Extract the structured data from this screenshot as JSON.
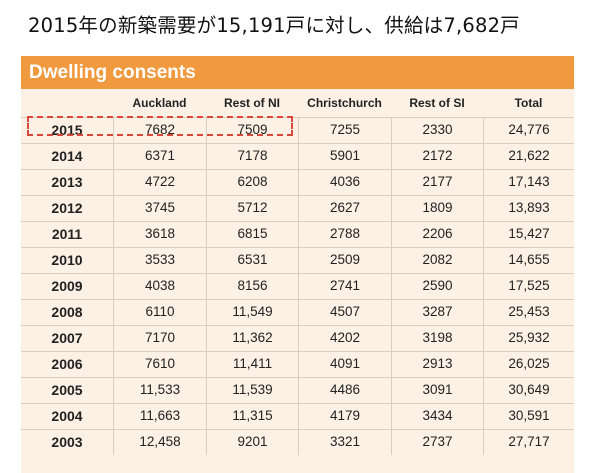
{
  "heading": "2015年の新築需要が15,191戸に対し、供給は7,682戸",
  "panel": {
    "title": "Dwelling consents"
  },
  "columns": [
    "",
    "Auckland",
    "Rest of NI",
    "Christchurch",
    "Rest of SI",
    "Total"
  ],
  "rows": [
    [
      "2015",
      "7682",
      "7509",
      "7255",
      "2330",
      "24,776"
    ],
    [
      "2014",
      "6371",
      "7178",
      "5901",
      "2172",
      "21,622"
    ],
    [
      "2013",
      "4722",
      "6208",
      "4036",
      "2177",
      "17,143"
    ],
    [
      "2012",
      "3745",
      "5712",
      "2627",
      "1809",
      "13,893"
    ],
    [
      "2011",
      "3618",
      "6815",
      "2788",
      "2206",
      "15,427"
    ],
    [
      "2010",
      "3533",
      "6531",
      "2509",
      "2082",
      "14,655"
    ],
    [
      "2009",
      "4038",
      "8156",
      "2741",
      "2590",
      "17,525"
    ],
    [
      "2008",
      "6110",
      "11,549",
      "4507",
      "3287",
      "25,453"
    ],
    [
      "2007",
      "7170",
      "11,362",
      "4202",
      "3198",
      "25,932"
    ],
    [
      "2006",
      "7610",
      "11,411",
      "4091",
      "2913",
      "26,025"
    ],
    [
      "2005",
      "11,533",
      "11,539",
      "4486",
      "3091",
      "30,649"
    ],
    [
      "2004",
      "11,663",
      "11,315",
      "4179",
      "3434",
      "30,591"
    ],
    [
      "2003",
      "12,458",
      "9201",
      "3321",
      "2737",
      "27,717"
    ]
  ],
  "colors": {
    "header_bar": "#f0993f",
    "panel_bg": "#fdf1e6",
    "highlight_border": "#d9463a"
  }
}
